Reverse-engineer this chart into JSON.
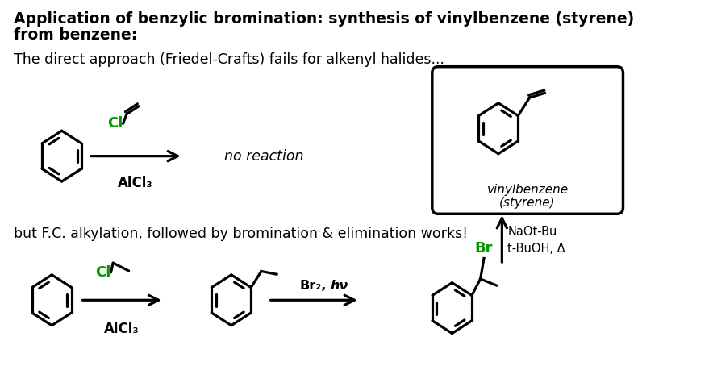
{
  "title_line1": "Application of benzylic bromination: synthesis of vinylbenzene (styrene)",
  "title_line2": "from benzene:",
  "subtitle1": "The direct approach (Friedel-Crafts) fails for alkenyl halides...",
  "subtitle2": "but F.C. alkylation, followed by bromination & elimination works!",
  "no_reaction_text": "no reaction",
  "alcl3_text": "AlCl₃",
  "br2_hv_bold": "Br₂,",
  "hv_italic": " hν",
  "naotbu_text": "NaOt-Bu",
  "tbuoh_text": "t-BuOH, Δ",
  "vinylbenzene_line1": "vinylbenzene",
  "vinylbenzene_line2": "(styrene)",
  "green": "#009900",
  "black": "#000000",
  "bg_color": "#ffffff",
  "title_fontsize": 13.5,
  "body_fontsize": 12.5,
  "chem_label_fontsize": 12,
  "small_label_fontsize": 11
}
